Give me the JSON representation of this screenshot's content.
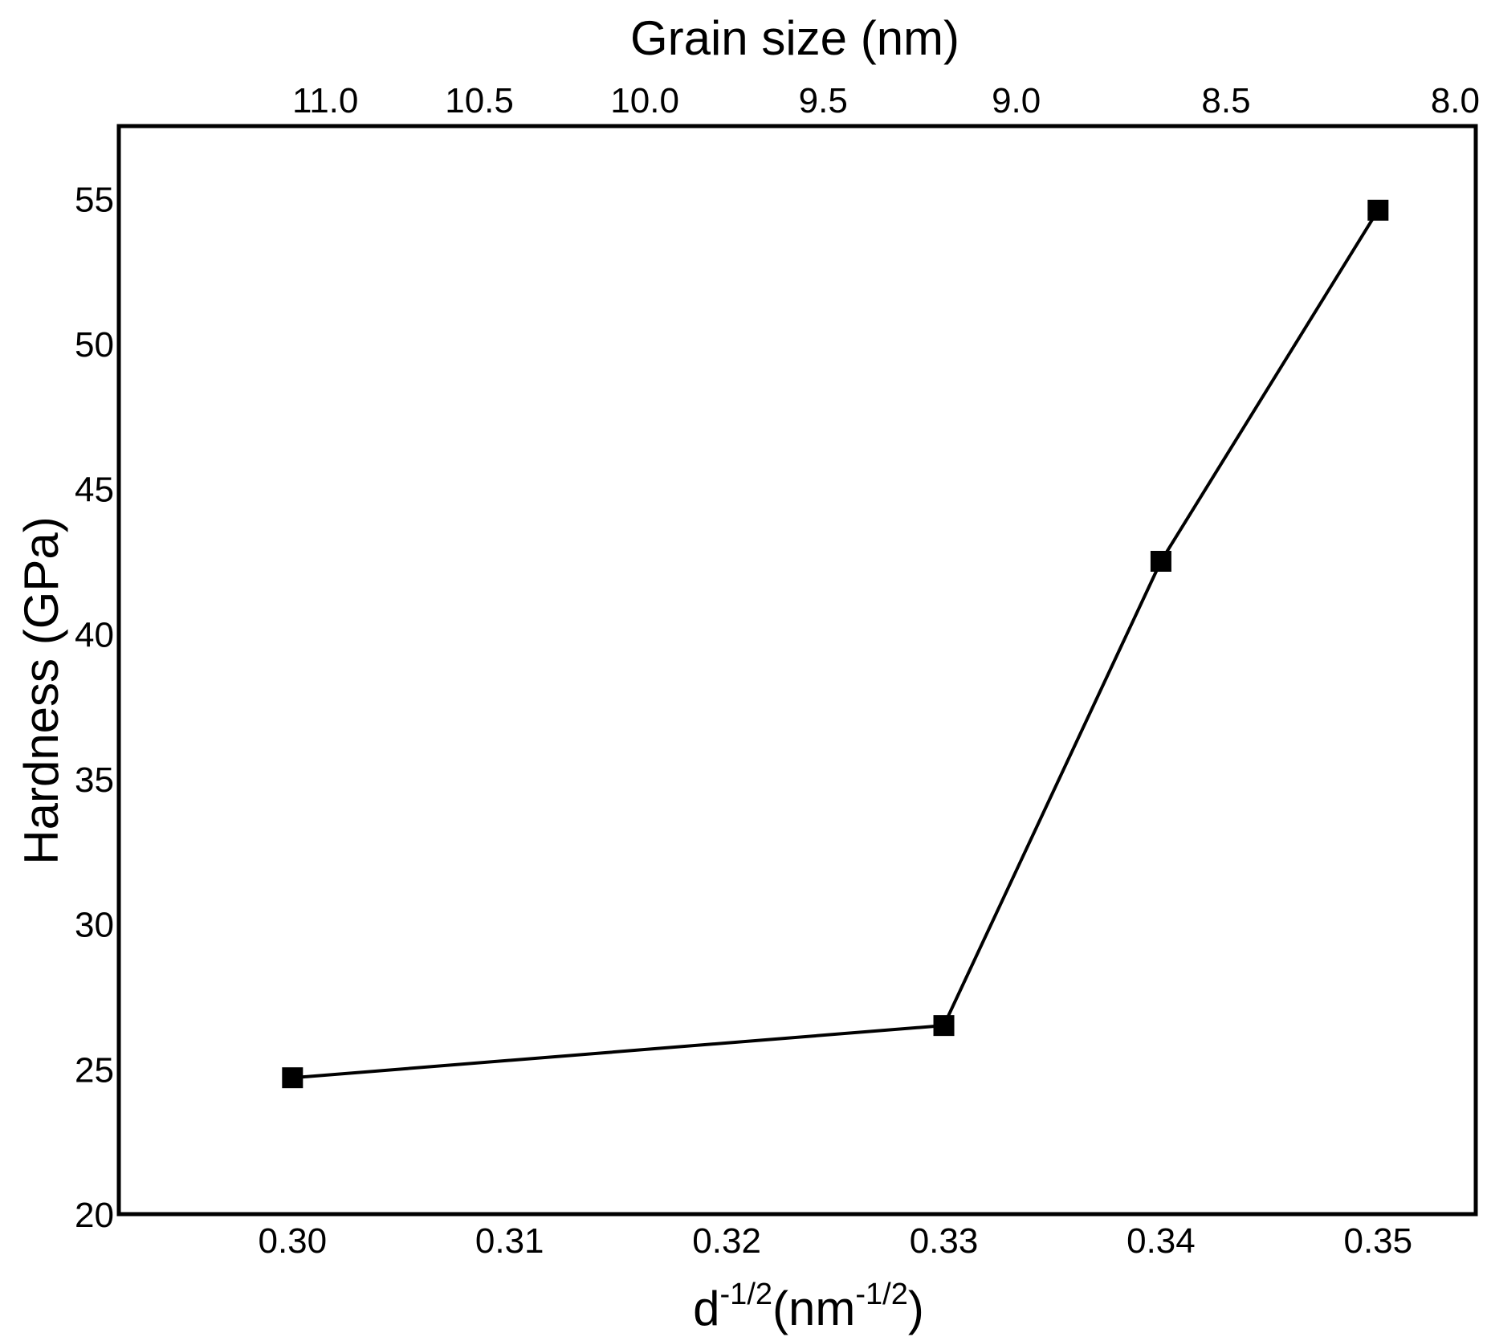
{
  "chart_data": {
    "type": "line",
    "title": "",
    "xlabel_bottom": {
      "base": "d",
      "base_sup": "-1/2",
      "open": "(nm",
      "unit_sup": "-1/2",
      "close": ")"
    },
    "xlabel_top": "Grain size (nm)",
    "ylabel": "Hardness (GPa)",
    "xlim": [
      0.292,
      0.3545
    ],
    "ylim": [
      20,
      57.5
    ],
    "x_ticks": [
      "0.30",
      "0.31",
      "0.32",
      "0.33",
      "0.34",
      "0.35"
    ],
    "x_tick_values": [
      0.3,
      0.31,
      0.32,
      0.33,
      0.34,
      0.35
    ],
    "top_ticks": [
      "11.0",
      "10.5",
      "10.0",
      "9.5",
      "9.0",
      "8.5",
      "8.0"
    ],
    "top_tick_values": [
      11.0,
      10.5,
      10.0,
      9.5,
      9.0,
      8.5,
      8.0
    ],
    "y_ticks": [
      "20",
      "25",
      "30",
      "35",
      "40",
      "45",
      "50",
      "55"
    ],
    "y_tick_values": [
      20,
      25,
      30,
      35,
      40,
      45,
      50,
      55
    ],
    "grid": false,
    "series": [
      {
        "marker": "square",
        "color": "#000000",
        "x": [
          0.3,
          0.33,
          0.34,
          0.35
        ],
        "y": [
          24.7,
          26.5,
          42.5,
          54.6
        ]
      }
    ]
  }
}
